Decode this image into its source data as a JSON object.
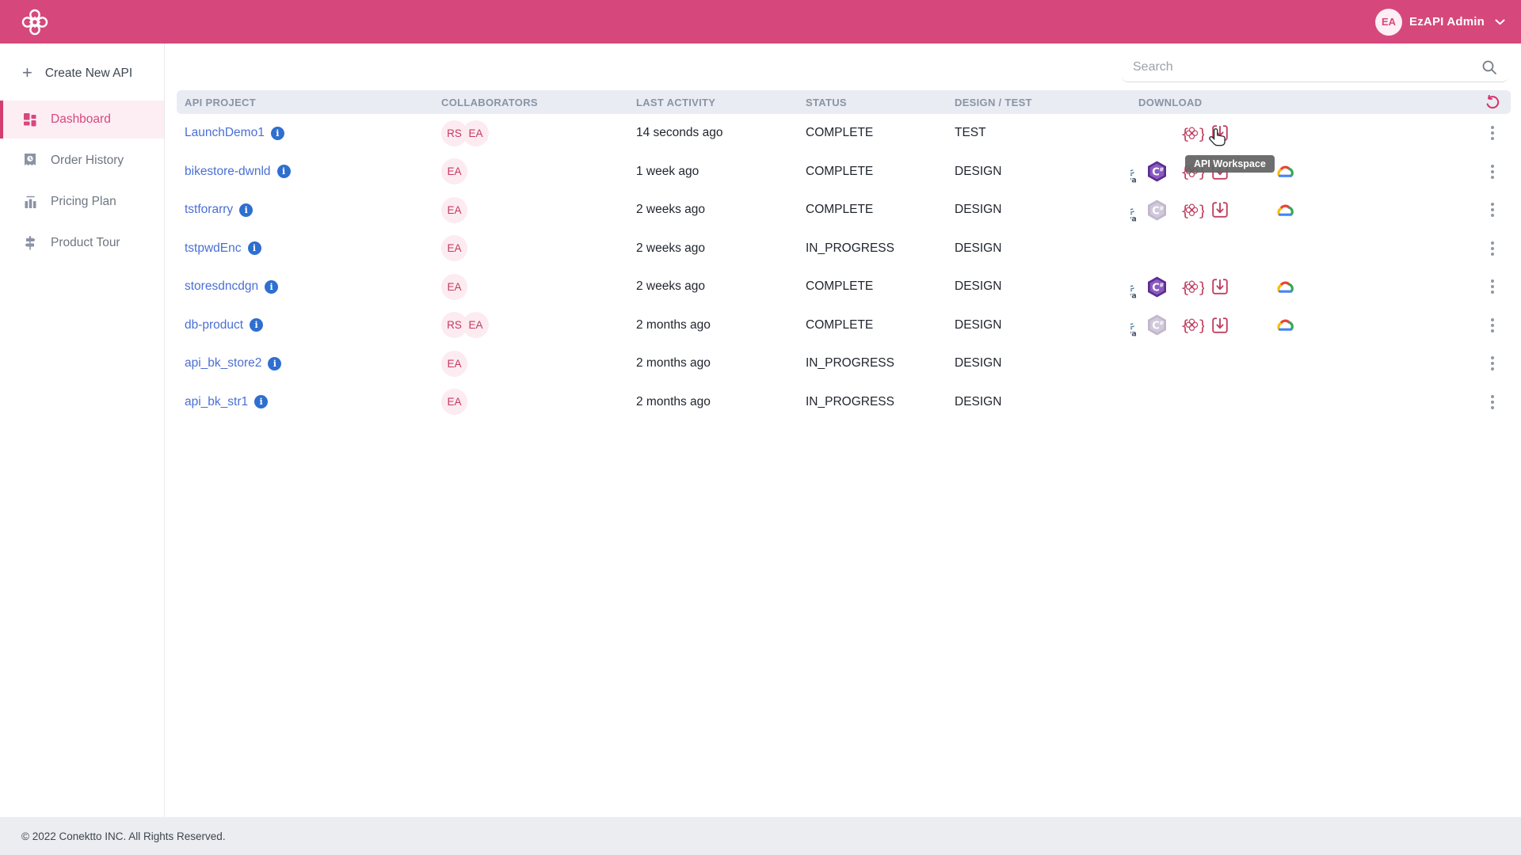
{
  "topbar": {
    "user": {
      "initials": "EA",
      "name": "EzAPI Admin"
    }
  },
  "sidebar": {
    "create": {
      "label": "Create New API"
    },
    "items": [
      {
        "label": "Dashboard",
        "active": true
      },
      {
        "label": "Order History",
        "active": false
      },
      {
        "label": "Pricing Plan",
        "active": false
      },
      {
        "label": "Product Tour",
        "active": false
      }
    ]
  },
  "search": {
    "placeholder": "Search"
  },
  "table": {
    "headers": [
      "API PROJECT",
      "COLLABORATORS",
      "LAST ACTIVITY",
      "STATUS",
      "DESIGN / TEST",
      "DOWNLOAD"
    ],
    "rows": [
      {
        "name": "LaunchDemo1",
        "collaborators": [
          "RS",
          "EA"
        ],
        "last_activity": "14 seconds ago",
        "status": "COMPLETE",
        "design_test": "TEST",
        "downloads": [
          "api-spec",
          "workspace"
        ]
      },
      {
        "name": "bikestore-dwnld",
        "collaborators": [
          "EA"
        ],
        "last_activity": "1 week ago",
        "status": "COMPLETE",
        "design_test": "DESIGN",
        "downloads": [
          "java",
          "csharp",
          "api-spec",
          "workspace",
          "gcloud"
        ]
      },
      {
        "name": "tstforarry",
        "collaborators": [
          "EA"
        ],
        "last_activity": "2 weeks ago",
        "status": "COMPLETE",
        "design_test": "DESIGN",
        "downloads": [
          "java",
          "csharp-faded",
          "api-spec",
          "workspace",
          "gcloud"
        ]
      },
      {
        "name": "tstpwdEnc",
        "collaborators": [
          "EA"
        ],
        "last_activity": "2 weeks ago",
        "status": "IN_PROGRESS",
        "design_test": "DESIGN",
        "downloads": []
      },
      {
        "name": "storesdncdgn",
        "collaborators": [
          "EA"
        ],
        "last_activity": "2 weeks ago",
        "status": "COMPLETE",
        "design_test": "DESIGN",
        "downloads": [
          "java",
          "csharp",
          "api-spec",
          "workspace",
          "gcloud"
        ]
      },
      {
        "name": "db-product",
        "collaborators": [
          "RS",
          "EA"
        ],
        "last_activity": "2 months ago",
        "status": "COMPLETE",
        "design_test": "DESIGN",
        "downloads": [
          "java",
          "csharp-faded",
          "api-spec",
          "workspace",
          "gcloud"
        ]
      },
      {
        "name": "api_bk_store2",
        "collaborators": [
          "EA"
        ],
        "last_activity": "2 months ago",
        "status": "IN_PROGRESS",
        "design_test": "DESIGN",
        "downloads": []
      },
      {
        "name": "api_bk_str1",
        "collaborators": [
          "EA"
        ],
        "last_activity": "2 months ago",
        "status": "IN_PROGRESS",
        "design_test": "DESIGN",
        "downloads": []
      }
    ]
  },
  "tooltip": {
    "text": "API Workspace"
  },
  "footer": {
    "copyright": "© 2022 Conektto INC. All Rights Reserved."
  },
  "colors": {
    "brand_pink": "#d6487b",
    "accent_pink": "#d6336c",
    "icon_crimson": "#c24061",
    "link_blue": "#4a6fd4",
    "info_blue": "#2e6fd0",
    "header_gray": "#8a94a6"
  }
}
